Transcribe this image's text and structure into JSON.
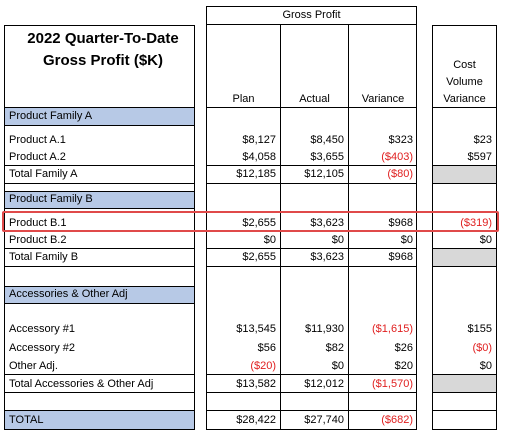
{
  "title_line1": "2022 Quarter-To-Date",
  "title_line2": "Gross Profit ($K)",
  "header": {
    "group": "Gross Profit",
    "plan": "Plan",
    "actual": "Actual",
    "variance": "Variance",
    "cv_line1": "Cost",
    "cv_line2": "Volume",
    "cv_line3": "Variance"
  },
  "rows": {
    "fam_a": "Product Family A",
    "a1": {
      "label": "Product A.1",
      "plan": "$8,127",
      "actual": "$8,450",
      "variance": "$323",
      "cvv": "$23"
    },
    "a2": {
      "label": "Product A.2",
      "plan": "$4,058",
      "actual": "$3,655",
      "variance": "($403)",
      "cvv": "$597"
    },
    "tot_a": {
      "label": "Total Family A",
      "plan": "$12,185",
      "actual": "$12,105",
      "variance": "($80)"
    },
    "fam_b": "Product Family B",
    "b1": {
      "label": "Product B.1",
      "plan": "$2,655",
      "actual": "$3,623",
      "variance": "$968",
      "cvv": "($319)"
    },
    "b2": {
      "label": "Product B.2",
      "plan": "$0",
      "actual": "$0",
      "variance": "$0",
      "cvv": "$0"
    },
    "tot_b": {
      "label": "Total Family B",
      "plan": "$2,655",
      "actual": "$3,623",
      "variance": "$968"
    },
    "acc": "Accessories & Other Adj",
    "acc1": {
      "label": "Accessory #1",
      "plan": "$13,545",
      "actual": "$11,930",
      "variance": "($1,615)",
      "cvv": "$155"
    },
    "acc2": {
      "label": "Accessory #2",
      "plan": "$56",
      "actual": "$82",
      "variance": "$26",
      "cvv": "($0)"
    },
    "other": {
      "label": "Other Adj.",
      "plan": "($20)",
      "actual": "$0",
      "variance": "$20",
      "cvv": "$0"
    },
    "tot_acc": {
      "label": "Total Accessories & Other Adj",
      "plan": "$13,582",
      "actual": "$12,012",
      "variance": "($1,570)"
    },
    "total": {
      "label": "TOTAL",
      "plan": "$28,422",
      "actual": "$27,740",
      "variance": "($682)"
    }
  },
  "colors": {
    "band": "#b7c9e6",
    "negative": "#e02020",
    "highlight": "#e04a4a",
    "gray": "#d8d8d8"
  }
}
